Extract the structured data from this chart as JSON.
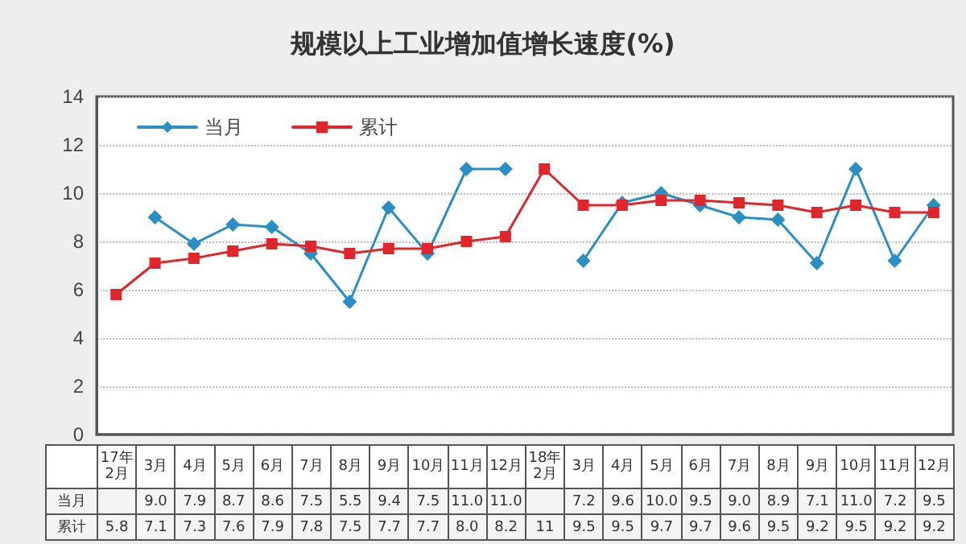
{
  "chart_data": {
    "type": "line",
    "title": "规模以上工业增加值增长速度(%)",
    "categories": [
      "17年\n2月",
      "3月",
      "4月",
      "5月",
      "6月",
      "7月",
      "8月",
      "9月",
      "10月",
      "11月",
      "12月",
      "18年\n2月",
      "3月",
      "4月",
      "5月",
      "6月",
      "7月",
      "8月",
      "9月",
      "10月",
      "11月",
      "12月"
    ],
    "series": [
      {
        "name": "当月",
        "color": "#2b8fc4",
        "marker": "diamond",
        "values": [
          null,
          9.0,
          7.9,
          8.7,
          8.6,
          7.5,
          5.5,
          9.4,
          7.5,
          11.0,
          11.0,
          null,
          7.2,
          9.6,
          10.0,
          9.5,
          9.0,
          8.9,
          7.1,
          11.0,
          7.2,
          9.5
        ],
        "value_labels": [
          null,
          "9.0",
          "7.9",
          "8.7",
          "8.6",
          "7.5",
          "5.5",
          "9.4",
          "7.5",
          "11.0",
          "11.0",
          null,
          "7.2",
          "9.6",
          "10.0",
          "9.5",
          "9.0",
          "8.9",
          "7.1",
          "11.0",
          "7.2",
          "9.5"
        ]
      },
      {
        "name": "累计",
        "color": "#e0262b",
        "marker": "square",
        "values": [
          5.8,
          7.1,
          7.3,
          7.6,
          7.9,
          7.8,
          7.5,
          7.7,
          7.7,
          8.0,
          8.2,
          11,
          9.5,
          9.5,
          9.7,
          9.7,
          9.6,
          9.5,
          9.2,
          9.5,
          9.2,
          9.2
        ],
        "value_labels": [
          "5.8",
          "7.1",
          "7.3",
          "7.6",
          "7.9",
          "7.8",
          "7.5",
          "7.7",
          "7.7",
          "8.0",
          "8.2",
          "11",
          "9.5",
          "9.5",
          "9.7",
          "9.7",
          "9.6",
          "9.5",
          "9.2",
          "9.5",
          "9.2",
          "9.2"
        ]
      }
    ],
    "ylim": [
      0,
      14
    ],
    "yticks": [
      0,
      2,
      4,
      6,
      8,
      10,
      12,
      14
    ],
    "grid": "y",
    "legend": "top left",
    "line_style": "solid"
  }
}
